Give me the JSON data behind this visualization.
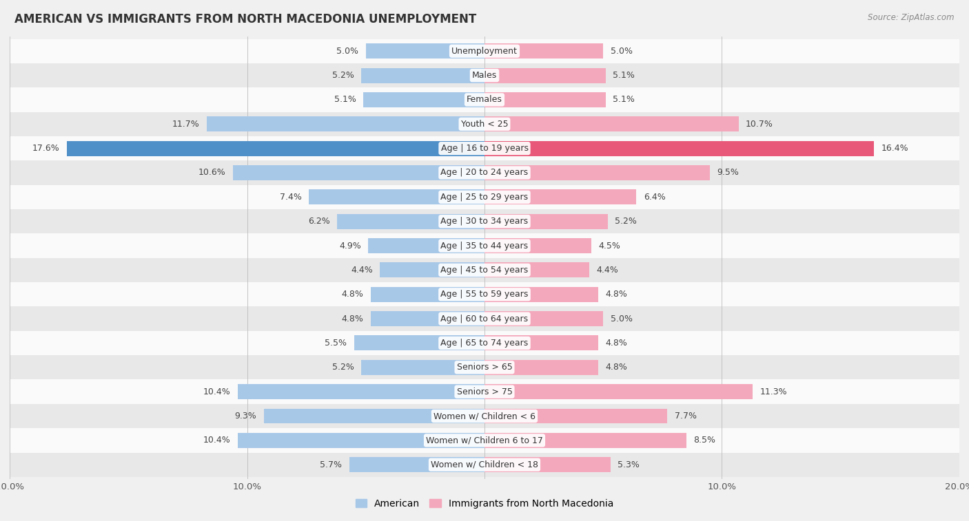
{
  "title": "AMERICAN VS IMMIGRANTS FROM NORTH MACEDONIA UNEMPLOYMENT",
  "source": "Source: ZipAtlas.com",
  "categories": [
    "Unemployment",
    "Males",
    "Females",
    "Youth < 25",
    "Age | 16 to 19 years",
    "Age | 20 to 24 years",
    "Age | 25 to 29 years",
    "Age | 30 to 34 years",
    "Age | 35 to 44 years",
    "Age | 45 to 54 years",
    "Age | 55 to 59 years",
    "Age | 60 to 64 years",
    "Age | 65 to 74 years",
    "Seniors > 65",
    "Seniors > 75",
    "Women w/ Children < 6",
    "Women w/ Children 6 to 17",
    "Women w/ Children < 18"
  ],
  "american": [
    5.0,
    5.2,
    5.1,
    11.7,
    17.6,
    10.6,
    7.4,
    6.2,
    4.9,
    4.4,
    4.8,
    4.8,
    5.5,
    5.2,
    10.4,
    9.3,
    10.4,
    5.7
  ],
  "immigrant": [
    5.0,
    5.1,
    5.1,
    10.7,
    16.4,
    9.5,
    6.4,
    5.2,
    4.5,
    4.4,
    4.8,
    5.0,
    4.8,
    4.8,
    11.3,
    7.7,
    8.5,
    5.3
  ],
  "american_color": "#a8c8e8",
  "immigrant_color": "#f4a8bc",
  "american_color_highlight": "#5090c8",
  "immigrant_color_highlight": "#e85878",
  "max_val": 20.0,
  "bar_height": 0.62,
  "bg_color": "#f0f0f0",
  "row_color_light": "#fafafa",
  "row_color_dark": "#e8e8e8",
  "label_fontsize": 9.0,
  "title_fontsize": 12,
  "source_fontsize": 8.5,
  "legend_fontsize": 10,
  "value_fontsize": 9.0
}
